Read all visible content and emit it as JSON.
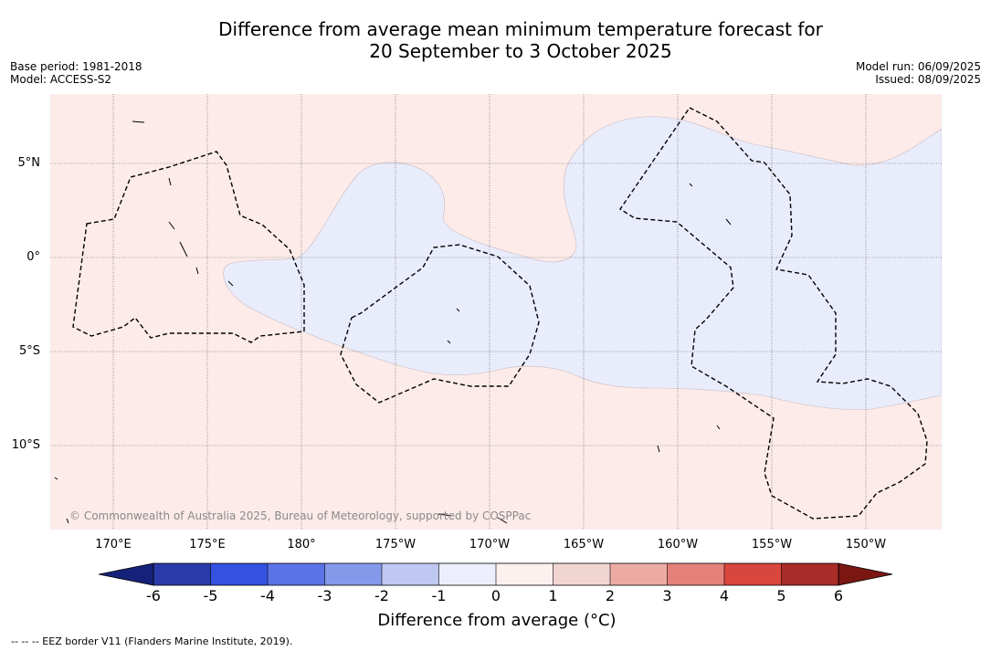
{
  "title": {
    "line1": "Difference from average mean minimum temperature forecast for",
    "line2": "20 September to 3 October 2025"
  },
  "meta_left": {
    "base_period": "Base period: 1981-2018",
    "model": "Model: ACCESS-S2"
  },
  "meta_right": {
    "model_run": "Model run: 06/09/2025",
    "issued": "Issued: 08/09/2025"
  },
  "map": {
    "lat_labels": [
      "5°N",
      "0°",
      "5°S",
      "10°S"
    ],
    "lon_labels": [
      "170°E",
      "175°E",
      "180°",
      "175°W",
      "170°W",
      "165°W",
      "160°W",
      "155°W",
      "150°W"
    ],
    "copyright": "© Commonwealth of Australia 2025, Bureau of Meteorology, supported by COSPPac",
    "colors": {
      "warm_small": "#fcebe9",
      "cool_small": "#e9ecfb"
    }
  },
  "colorbar": {
    "title": "Difference from average (°C)",
    "ticks": [
      "-6",
      "-5",
      "-4",
      "-3",
      "-2",
      "-1",
      "0",
      "1",
      "2",
      "3",
      "4",
      "5",
      "6"
    ],
    "colors": [
      "#16227a",
      "#2a3aa8",
      "#3352df",
      "#5a73e6",
      "#8499ea",
      "#bfc8f2",
      "#eceffb",
      "#fdf1f0",
      "#f1d5d1",
      "#ebaba3",
      "#e5817a",
      "#d9463d",
      "#a82c27",
      "#7a1712"
    ]
  },
  "legend": {
    "eez": "--  --  -- EEZ border V11 (Flanders Marine Institute, 2019)."
  }
}
